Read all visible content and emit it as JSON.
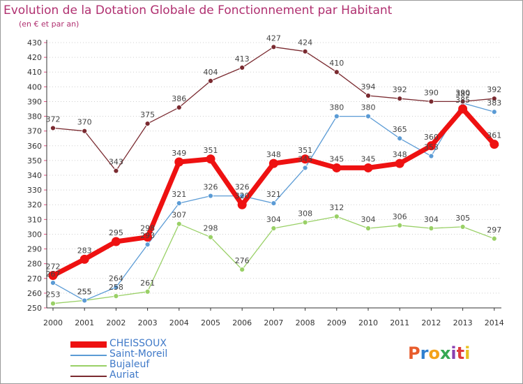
{
  "header": {
    "title": "Evolution de la Dotation Globale de Fonctionnement par Habitant",
    "subtitle": "(en € et par an)"
  },
  "logo": {
    "text": "Proxiti",
    "colors": [
      "#e85c2c",
      "#2e7fd0",
      "#f4a21a",
      "#35a853",
      "#8a3fb0",
      "#e03c3c",
      "#e8c020"
    ]
  },
  "chart_data": {
    "type": "line",
    "x": [
      2000,
      2001,
      2002,
      2003,
      2004,
      2005,
      2006,
      2007,
      2008,
      2009,
      2010,
      2011,
      2012,
      2013,
      2014
    ],
    "ylim": [
      250,
      430
    ],
    "yticks": [
      250,
      260,
      270,
      280,
      290,
      300,
      310,
      320,
      330,
      340,
      350,
      360,
      370,
      380,
      390,
      400,
      410,
      420,
      430
    ],
    "grid": "horizontal-dotted",
    "legend_position": "bottom-left",
    "series": [
      {
        "name": "CHEISSOUX",
        "color": "#ee1111",
        "emphasis": true,
        "values": [
          272,
          283,
          295,
          298,
          349,
          351,
          320,
          348,
          351,
          345,
          345,
          348,
          360,
          385,
          361
        ],
        "labels": [
          "272",
          "283",
          "295",
          "298",
          "349",
          "351",
          "320",
          "348",
          "351",
          "345",
          "345",
          "348",
          "360",
          "385",
          "361"
        ]
      },
      {
        "name": "Saint-Moreil",
        "color": "#5b9bd5",
        "values": [
          267,
          255,
          264,
          293,
          321,
          326,
          326,
          321,
          345,
          380,
          380,
          365,
          353,
          389,
          383
        ],
        "labels": [
          "267",
          "255",
          "264",
          "293",
          "321",
          "326",
          "326",
          "321",
          "345",
          "380",
          "380",
          "365",
          "353",
          "389",
          "383"
        ]
      },
      {
        "name": "Bujaleuf",
        "color": "#99d066",
        "values": [
          253,
          255,
          258,
          261,
          307,
          298,
          276,
          304,
          308,
          312,
          304,
          306,
          304,
          305,
          297
        ],
        "labels": [
          "253",
          "255",
          "258",
          "261",
          "307",
          "298",
          "276",
          "304",
          "308",
          "312",
          "304",
          "306",
          "304",
          "305",
          "297"
        ]
      },
      {
        "name": "Auriat",
        "color": "#7a2a30",
        "values": [
          372,
          370,
          343,
          375,
          386,
          404,
          413,
          427,
          424,
          410,
          394,
          392,
          390,
          390,
          392
        ],
        "labels": [
          "372",
          "370",
          "343",
          "375",
          "386",
          "404",
          "413",
          "427",
          "424",
          "410",
          "394",
          "392",
          "390",
          "390",
          "392"
        ]
      }
    ]
  }
}
